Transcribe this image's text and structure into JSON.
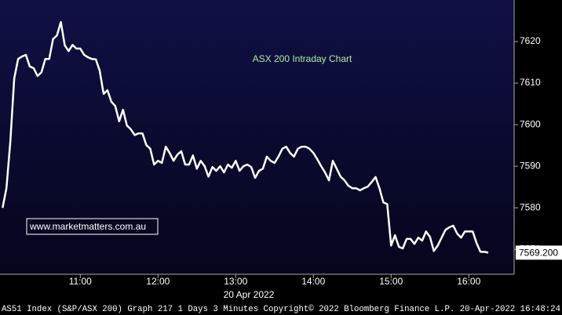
{
  "chart_data": {
    "type": "line",
    "title": "ASX 200 Intraday Chart",
    "watermark": "www.marketmatters.com.au",
    "xlabel": "20 Apr 2022",
    "footer": "AS51 Index (S&P/ASX 200) Graph 217 1 Days 3 Minutes Copyright© 2022 Bloomberg Finance L.P. 20-Apr-2022 16:48:24",
    "x": [
      600,
      603,
      606,
      609,
      612,
      615,
      618,
      621,
      624,
      627,
      630,
      633,
      636,
      639,
      642,
      645,
      648,
      651,
      654,
      657,
      660,
      663,
      666,
      669,
      672,
      675,
      678,
      681,
      684,
      687,
      690,
      693,
      696,
      699,
      702,
      705,
      708,
      711,
      714,
      717,
      720,
      723,
      726,
      729,
      732,
      735,
      738,
      741,
      744,
      747,
      750,
      753,
      756,
      759,
      762,
      765,
      768,
      771,
      774,
      777,
      780,
      783,
      786,
      789,
      792,
      795,
      798,
      801,
      804,
      807,
      810,
      813,
      816,
      819,
      822,
      825,
      828,
      831,
      834,
      837,
      840,
      843,
      846,
      849,
      852,
      855,
      858,
      861,
      864,
      867,
      870,
      873,
      876,
      879,
      882,
      885,
      888,
      891,
      894,
      897,
      900,
      903,
      906,
      909,
      912,
      915,
      918,
      921,
      924,
      927,
      930,
      933,
      936,
      939,
      942,
      945,
      948,
      951,
      954,
      957,
      960,
      963,
      966,
      969,
      972,
      975
    ],
    "series": [
      {
        "name": "AS51 Index",
        "color": "#ffffff",
        "values": [
          7580.0,
          7584.7,
          7596.0,
          7611.1,
          7615.8,
          7616.4,
          7616.8,
          7614.0,
          7613.6,
          7611.7,
          7612.6,
          7615.8,
          7615.8,
          7620.6,
          7621.5,
          7624.7,
          7619.1,
          7617.7,
          7619.2,
          7618.3,
          7618.3,
          7616.8,
          7616.2,
          7615.8,
          7615.7,
          7613.0,
          7607.4,
          7608.3,
          7605.5,
          7604.5,
          7600.8,
          7603.6,
          7599.8,
          7598.9,
          7597.5,
          7597.9,
          7597.9,
          7595.1,
          7594.2,
          7590.4,
          7591.3,
          7590.8,
          7594.7,
          7593.2,
          7591.3,
          7592.8,
          7593.6,
          7590.4,
          7590.4,
          7592.6,
          7589.4,
          7591.3,
          7590.0,
          7587.5,
          7589.8,
          7588.9,
          7590.0,
          7588.5,
          7590.4,
          7589.6,
          7591.3,
          7588.9,
          7590.0,
          7590.4,
          7589.8,
          7587.2,
          7588.9,
          7589.4,
          7592.3,
          7591.3,
          7590.8,
          7592.3,
          7594.2,
          7594.7,
          7593.2,
          7592.3,
          7594.2,
          7594.7,
          7594.7,
          7594.2,
          7593.2,
          7591.7,
          7590.0,
          7588.5,
          7586.6,
          7591.3,
          7589.4,
          7587.5,
          7586.6,
          7585.3,
          7584.7,
          7584.7,
          7584.2,
          7584.7,
          7585.1,
          7586.2,
          7587.4,
          7584.7,
          7581.3,
          7580.9,
          7570.9,
          7573.4,
          7570.6,
          7570.2,
          7572.5,
          7572.5,
          7571.3,
          7572.8,
          7572.1,
          7574.3,
          7573.0,
          7569.6,
          7570.9,
          7572.8,
          7574.7,
          7575.3,
          7575.7,
          7573.8,
          7572.8,
          7574.3,
          7574.3,
          7574.3,
          7571.5,
          7569.4,
          7569.4,
          7569.2
        ]
      }
    ],
    "last_price": {
      "value": 7569.2,
      "label": "7569.200"
    },
    "xlim": [
      598,
      995
    ],
    "xticks": [
      {
        "value": 660,
        "label": "11:00"
      },
      {
        "value": 720,
        "label": "12:00"
      },
      {
        "value": 780,
        "label": "13:00"
      },
      {
        "value": 840,
        "label": "14:00"
      },
      {
        "value": 900,
        "label": "15:00"
      },
      {
        "value": 960,
        "label": "16:00"
      }
    ],
    "ylim": [
      7564,
      7630
    ],
    "yticks": [
      7570,
      7580,
      7590,
      7600,
      7610,
      7620
    ],
    "grid": false
  }
}
